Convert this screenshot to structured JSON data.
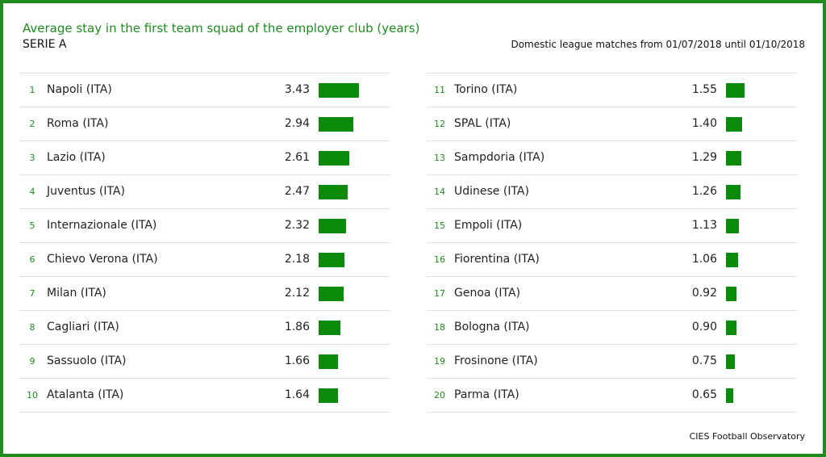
{
  "chart_data": {
    "type": "bar",
    "title": "Average stay in the first team squad of the employer club (years)",
    "subtitle": "SERIE A",
    "period": "Domestic league matches from 01/07/2018 until 01/10/2018",
    "source": "CIES Football Observatory",
    "bar_color": "#0a8a0a",
    "accent_color": "#1e8c1e",
    "max_value": 3.43,
    "rows": [
      {
        "rank": "1",
        "club": "Napoli (ITA)",
        "value": 3.43
      },
      {
        "rank": "2",
        "club": "Roma (ITA)",
        "value": 2.94
      },
      {
        "rank": "3",
        "club": "Lazio (ITA)",
        "value": 2.61
      },
      {
        "rank": "4",
        "club": "Juventus (ITA)",
        "value": 2.47
      },
      {
        "rank": "5",
        "club": "Internazionale (ITA)",
        "value": 2.32
      },
      {
        "rank": "6",
        "club": "Chievo Verona (ITA)",
        "value": 2.18
      },
      {
        "rank": "7",
        "club": "Milan (ITA)",
        "value": 2.12
      },
      {
        "rank": "8",
        "club": "Cagliari (ITA)",
        "value": 1.86
      },
      {
        "rank": "9",
        "club": "Sassuolo (ITA)",
        "value": 1.66
      },
      {
        "rank": "10",
        "club": "Atalanta (ITA)",
        "value": 1.64
      },
      {
        "rank": "11",
        "club": "Torino (ITA)",
        "value": 1.55
      },
      {
        "rank": "12",
        "club": "SPAL (ITA)",
        "value": 1.4
      },
      {
        "rank": "13",
        "club": "Sampdoria (ITA)",
        "value": 1.29
      },
      {
        "rank": "14",
        "club": "Udinese (ITA)",
        "value": 1.26
      },
      {
        "rank": "15",
        "club": "Empoli (ITA)",
        "value": 1.13
      },
      {
        "rank": "16",
        "club": "Fiorentina (ITA)",
        "value": 1.06
      },
      {
        "rank": "17",
        "club": "Genoa (ITA)",
        "value": 0.92
      },
      {
        "rank": "18",
        "club": "Bologna (ITA)",
        "value": 0.9
      },
      {
        "rank": "19",
        "club": "Frosinone (ITA)",
        "value": 0.75
      },
      {
        "rank": "20",
        "club": "Parma (ITA)",
        "value": 0.65
      }
    ]
  }
}
